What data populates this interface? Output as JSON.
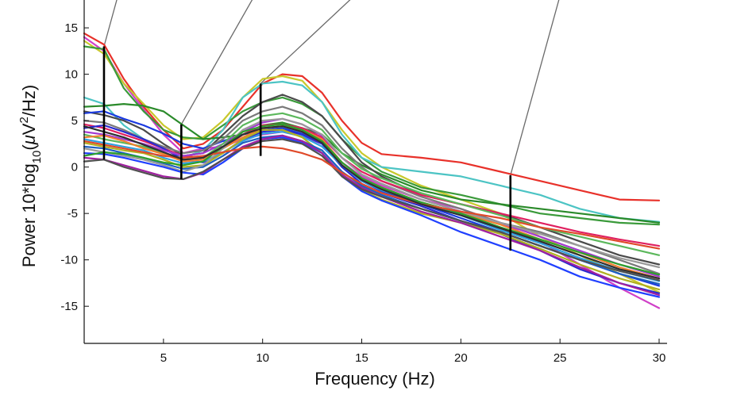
{
  "chart_data": {
    "type": "line",
    "xlabel": "Frequency (Hz)",
    "ylabel_parts": {
      "pre": "Power 10*log",
      "sub": "10",
      "mid": "(",
      "mu": "μ",
      "unit": "V",
      "sup": "2",
      "post": "/Hz)"
    },
    "xlim": [
      1,
      30.4
    ],
    "ylim": [
      -19,
      18
    ],
    "x_ticks": [
      5,
      10,
      15,
      20,
      25,
      30
    ],
    "y_ticks": [
      15,
      10,
      5,
      0,
      -5,
      -10,
      -15
    ],
    "grid": false,
    "legend": "none",
    "x": [
      1,
      2,
      3,
      4,
      5,
      6,
      7,
      8,
      9,
      10,
      11,
      12,
      13,
      14,
      15,
      16,
      18,
      20,
      22,
      24,
      26,
      28,
      30
    ],
    "series": [
      {
        "color": "#e8312a",
        "values": [
          14.4,
          13.2,
          9.5,
          6.5,
          4.0,
          2.0,
          2.5,
          4.0,
          6.5,
          9.0,
          10.0,
          9.8,
          8.0,
          5.0,
          2.6,
          1.4,
          1.0,
          0.5,
          -0.5,
          -1.5,
          -2.5,
          -3.5,
          -3.6
        ]
      },
      {
        "color": "#d040c8",
        "values": [
          14.0,
          12.5,
          9.0,
          6.2,
          3.5,
          1.5,
          2.0,
          2.2,
          3.0,
          3.5,
          3.8,
          3.3,
          2.5,
          0.5,
          -1.0,
          -2.0,
          -3.5,
          -4.5,
          -6.0,
          -8.0,
          -10.5,
          -13.0,
          -15.2
        ]
      },
      {
        "color": "#c8c82c",
        "values": [
          13.6,
          12.2,
          9.0,
          6.8,
          4.5,
          3.0,
          3.2,
          5.0,
          7.5,
          9.5,
          9.8,
          9.3,
          7.0,
          4.0,
          1.5,
          0.0,
          -2.0,
          -3.5,
          -5.0,
          -7.5,
          -9.5,
          -11.5,
          -13.5
        ]
      },
      {
        "color": "#3a9a3a",
        "values": [
          13.0,
          12.7,
          8.5,
          6.0,
          4.0,
          3.2,
          3.0,
          4.5,
          6.0,
          7.0,
          7.5,
          6.8,
          5.5,
          3.0,
          1.0,
          -0.5,
          -2.2,
          -3.0,
          -4.0,
          -5.0,
          -5.5,
          -6.0,
          -6.2
        ]
      },
      {
        "color": "#4cc4c4",
        "values": [
          7.5,
          6.8,
          4.5,
          3.0,
          2.0,
          1.0,
          1.8,
          4.0,
          7.5,
          9.0,
          9.2,
          8.8,
          7.0,
          3.5,
          1.0,
          0.0,
          -0.5,
          -1.0,
          -2.0,
          -3.0,
          -4.5,
          -5.5,
          -5.9
        ]
      },
      {
        "color": "#2a8a2a",
        "values": [
          6.5,
          6.6,
          6.8,
          6.6,
          6.0,
          4.5,
          3.0,
          3.2,
          3.5,
          4.5,
          4.8,
          4.2,
          3.5,
          1.5,
          0.2,
          -0.8,
          -2.5,
          -3.5,
          -4.0,
          -4.5,
          -5.0,
          -5.5,
          -6.0
        ]
      },
      {
        "color": "#4a4a4a",
        "values": [
          6.0,
          5.6,
          5.0,
          4.0,
          2.5,
          1.2,
          1.5,
          3.5,
          5.5,
          7.0,
          7.8,
          7.0,
          5.5,
          3.0,
          0.5,
          -1.0,
          -3.0,
          -4.0,
          -5.0,
          -6.5,
          -8.0,
          -9.5,
          -10.5
        ]
      },
      {
        "color": "#1a3ae0",
        "values": [
          5.8,
          6.0,
          5.2,
          4.5,
          3.6,
          2.5,
          2.0,
          2.8,
          3.5,
          4.0,
          4.2,
          3.6,
          2.5,
          0.2,
          -1.5,
          -2.6,
          -4.0,
          -5.5,
          -7.0,
          -8.5,
          -10.0,
          -11.5,
          -12.8
        ]
      },
      {
        "color": "#7a7a7a",
        "values": [
          5.0,
          4.8,
          4.0,
          3.0,
          2.2,
          1.5,
          1.8,
          3.0,
          5.0,
          6.0,
          6.5,
          5.8,
          4.5,
          2.0,
          0.0,
          -1.5,
          -3.2,
          -4.5,
          -6.0,
          -7.0,
          -8.5,
          -10.0,
          -11.5
        ]
      },
      {
        "color": "#e02060",
        "values": [
          4.6,
          4.2,
          3.5,
          2.8,
          2.0,
          1.2,
          1.0,
          2.0,
          3.5,
          4.5,
          4.6,
          4.2,
          3.2,
          1.0,
          -0.5,
          -1.5,
          -3.0,
          -4.0,
          -5.0,
          -6.0,
          -7.0,
          -7.8,
          -8.5
        ]
      },
      {
        "color": "#2a2ad0",
        "values": [
          4.2,
          4.5,
          3.8,
          3.0,
          2.0,
          0.8,
          0.5,
          1.5,
          3.0,
          3.8,
          4.0,
          3.5,
          2.5,
          0.0,
          -1.8,
          -2.8,
          -4.2,
          -5.8,
          -7.2,
          -9.0,
          -11.0,
          -12.5,
          -13.6
        ]
      },
      {
        "color": "#a33ad0",
        "values": [
          3.8,
          3.5,
          3.0,
          2.5,
          1.8,
          1.2,
          1.5,
          2.5,
          3.8,
          4.8,
          5.2,
          4.6,
          3.4,
          1.0,
          -0.8,
          -1.8,
          -3.5,
          -4.8,
          -6.0,
          -7.5,
          -9.0,
          -10.5,
          -11.8
        ]
      },
      {
        "color": "#5cb85c",
        "values": [
          3.5,
          3.0,
          2.6,
          2.2,
          1.5,
          0.8,
          1.0,
          2.5,
          4.5,
          5.5,
          5.8,
          5.2,
          4.0,
          1.5,
          -0.2,
          -1.2,
          -2.8,
          -4.0,
          -5.2,
          -6.5,
          -7.5,
          -8.5,
          -9.5
        ]
      },
      {
        "color": "#f08030",
        "values": [
          3.2,
          3.4,
          2.8,
          2.0,
          1.4,
          0.6,
          0.8,
          2.0,
          3.2,
          4.2,
          4.4,
          4.0,
          3.0,
          0.5,
          -1.2,
          -2.2,
          -3.8,
          -5.0,
          -6.2,
          -7.8,
          -9.2,
          -10.8,
          -12.0
        ]
      },
      {
        "color": "#30a0e0",
        "values": [
          3.0,
          2.6,
          2.2,
          1.8,
          1.0,
          0.4,
          0.6,
          1.6,
          2.8,
          3.6,
          3.8,
          3.3,
          2.2,
          0.2,
          -1.5,
          -2.5,
          -3.8,
          -5.2,
          -6.8,
          -8.2,
          -9.8,
          -11.2,
          -12.3
        ]
      },
      {
        "color": "#b0b020",
        "values": [
          2.6,
          2.2,
          1.8,
          1.5,
          0.8,
          0.0,
          0.2,
          1.5,
          3.0,
          4.0,
          4.0,
          3.2,
          1.5,
          -1.0,
          -2.5,
          -3.5,
          -5.0,
          -6.0,
          -7.2,
          -8.8,
          -10.5,
          -12.0,
          -13.2
        ]
      },
      {
        "color": "#1e60c0",
        "values": [
          2.2,
          2.0,
          1.5,
          1.0,
          0.4,
          -0.2,
          0.0,
          1.2,
          2.6,
          3.2,
          3.4,
          2.8,
          1.8,
          -0.5,
          -2.0,
          -3.0,
          -4.5,
          -5.8,
          -7.0,
          -8.5,
          -10.0,
          -11.5,
          -12.6
        ]
      },
      {
        "color": "#9a9a9a",
        "values": [
          2.0,
          1.6,
          1.2,
          0.8,
          0.2,
          -0.5,
          0.2,
          2.0,
          4.0,
          5.0,
          5.2,
          4.6,
          3.5,
          1.0,
          -0.8,
          -1.8,
          -3.5,
          -4.8,
          -6.0,
          -7.2,
          -8.5,
          -9.8,
          -10.8
        ]
      },
      {
        "color": "#2040ff",
        "values": [
          1.5,
          1.4,
          1.0,
          0.5,
          0.0,
          -0.6,
          -0.8,
          0.5,
          2.0,
          3.0,
          3.2,
          2.6,
          1.5,
          -1.0,
          -2.6,
          -3.6,
          -5.2,
          -7.0,
          -8.5,
          -10.0,
          -11.8,
          -13.0,
          -14.0
        ]
      },
      {
        "color": "#a020a0",
        "values": [
          1.0,
          0.8,
          0.2,
          -0.4,
          -1.0,
          -1.3,
          -0.6,
          0.8,
          2.2,
          3.0,
          3.4,
          2.8,
          1.5,
          -0.8,
          -2.2,
          -3.2,
          -4.8,
          -6.0,
          -7.5,
          -9.0,
          -10.8,
          -12.5,
          -13.8
        ]
      },
      {
        "color": "#505050",
        "values": [
          0.6,
          0.8,
          0.0,
          -0.6,
          -1.2,
          -1.3,
          -0.5,
          0.8,
          2.0,
          2.8,
          3.0,
          2.5,
          1.2,
          -1.0,
          -2.4,
          -3.2,
          -4.5,
          -5.8,
          -7.0,
          -8.5,
          -10.0,
          -11.2,
          -12.2
        ]
      },
      {
        "color": "#2ca02c",
        "values": [
          1.2,
          1.6,
          1.4,
          1.0,
          0.5,
          0.2,
          0.6,
          2.2,
          3.8,
          4.4,
          4.6,
          4.0,
          2.8,
          0.5,
          -1.2,
          -2.2,
          -3.8,
          -5.0,
          -6.5,
          -7.8,
          -9.2,
          -10.5,
          -11.6
        ]
      },
      {
        "color": "#e04a2a",
        "values": [
          2.8,
          2.4,
          2.0,
          1.6,
          1.2,
          1.0,
          1.2,
          1.6,
          2.0,
          2.2,
          2.0,
          1.5,
          0.8,
          -0.6,
          -1.8,
          -2.8,
          -4.0,
          -4.8,
          -5.5,
          -6.5,
          -7.2,
          -8.0,
          -8.8
        ]
      },
      {
        "color": "#303030",
        "values": [
          4.4,
          3.8,
          3.2,
          2.4,
          1.6,
          0.8,
          1.0,
          2.2,
          3.5,
          4.2,
          4.4,
          3.8,
          2.6,
          0.2,
          -1.4,
          -2.4,
          -4.0,
          -5.2,
          -6.6,
          -8.0,
          -9.5,
          -11.0,
          -12.0
        ]
      }
    ],
    "markers": [
      {
        "x": 2.0,
        "ymin": 0.8,
        "ymax": 13.0
      },
      {
        "x": 5.9,
        "ymin": -1.3,
        "ymax": 4.6
      },
      {
        "x": 9.9,
        "ymin": 1.2,
        "ymax": 9.0
      },
      {
        "x": 22.5,
        "ymin": -9.0,
        "ymax": -0.9
      }
    ],
    "callouts": [
      {
        "x": 2.0,
        "y": 13.0,
        "to_x": 2.9,
        "to_y": 20.0
      },
      {
        "x": 5.9,
        "y": 4.6,
        "to_x": 10.0,
        "to_y": 20.0
      },
      {
        "x": 9.9,
        "y": 9.0,
        "to_x": 15.4,
        "to_y": 20.0
      },
      {
        "x": 22.5,
        "y": -0.9,
        "to_x": 25.2,
        "to_y": 20.0
      }
    ]
  }
}
